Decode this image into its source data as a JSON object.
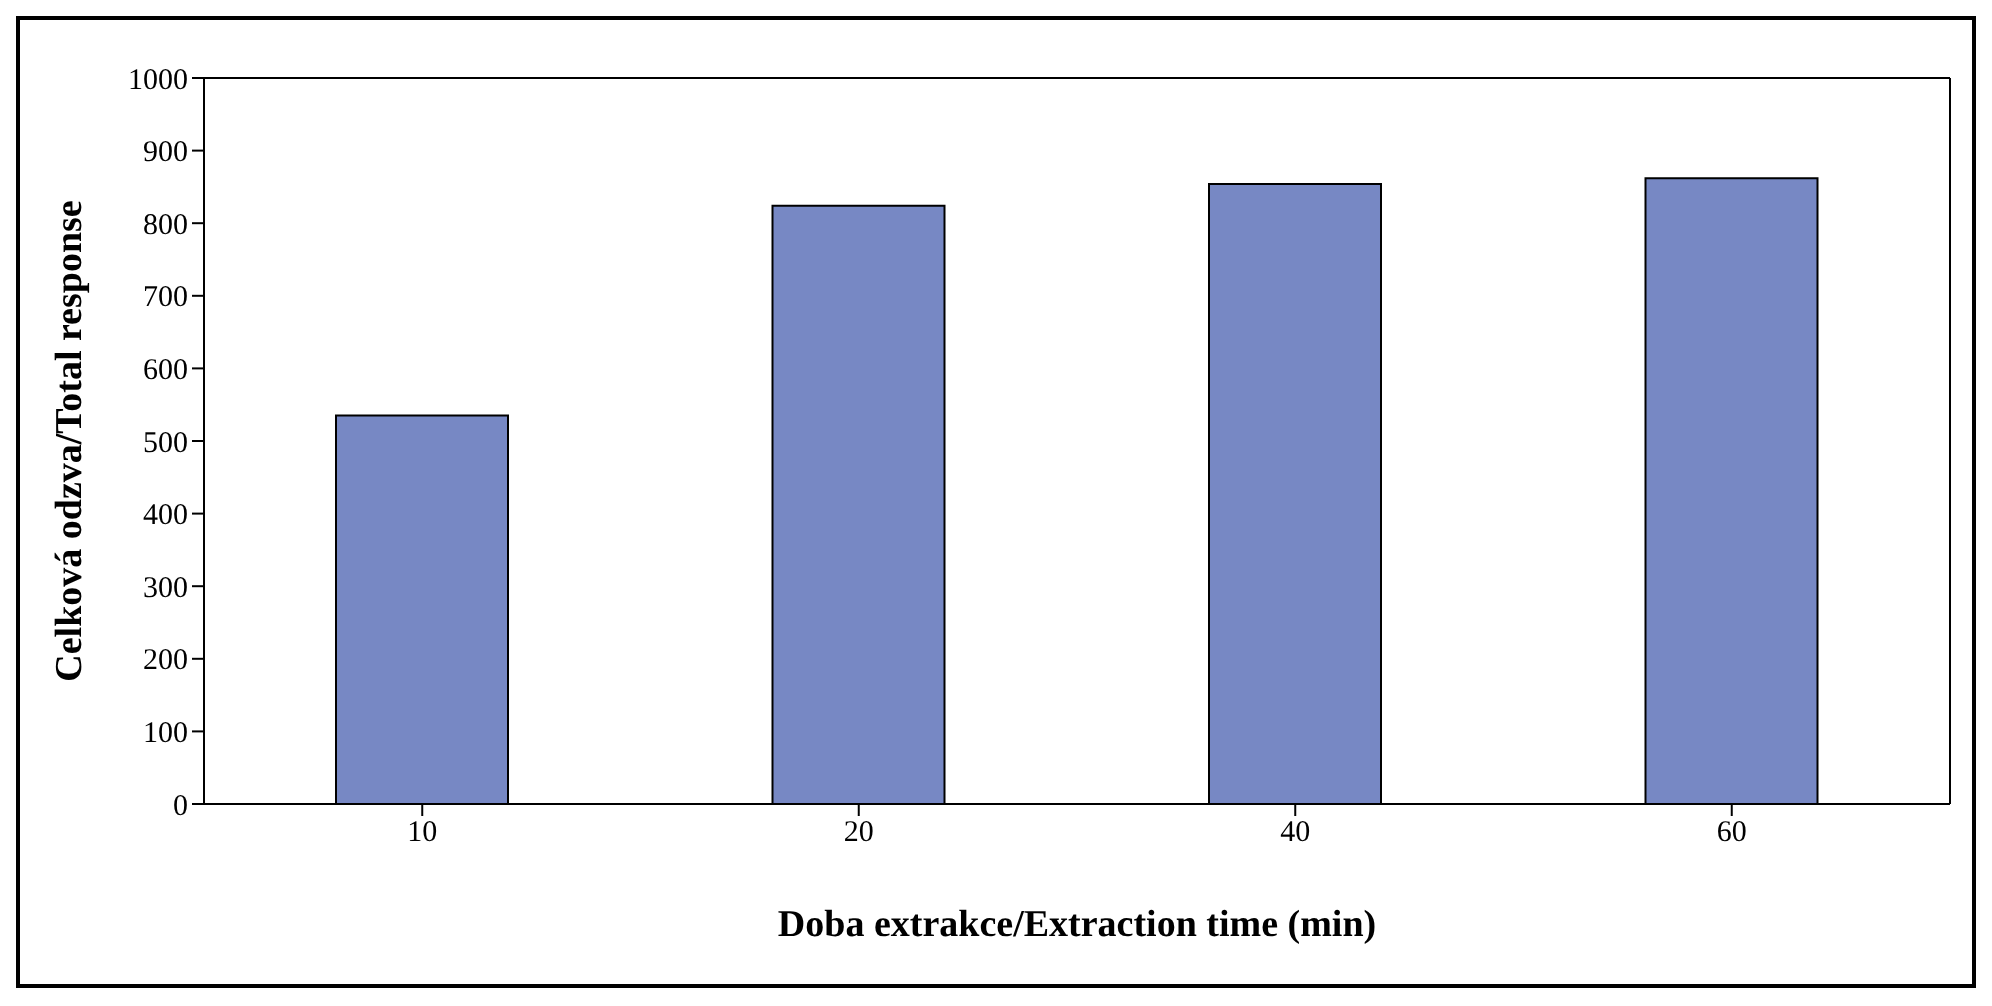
{
  "chart_data": {
    "type": "bar",
    "xlabel": "Doba extrakce/Extraction time (min)",
    "ylabel": "Celková odzva/Total response",
    "categories": [
      "10",
      "20",
      "40",
      "60"
    ],
    "values": [
      535,
      824,
      854,
      862
    ],
    "color": "#7788c4",
    "ylim": [
      0,
      1000
    ],
    "yticks": [
      0,
      100,
      200,
      300,
      400,
      500,
      600,
      700,
      800,
      900,
      1000
    ],
    "grid": false
  }
}
